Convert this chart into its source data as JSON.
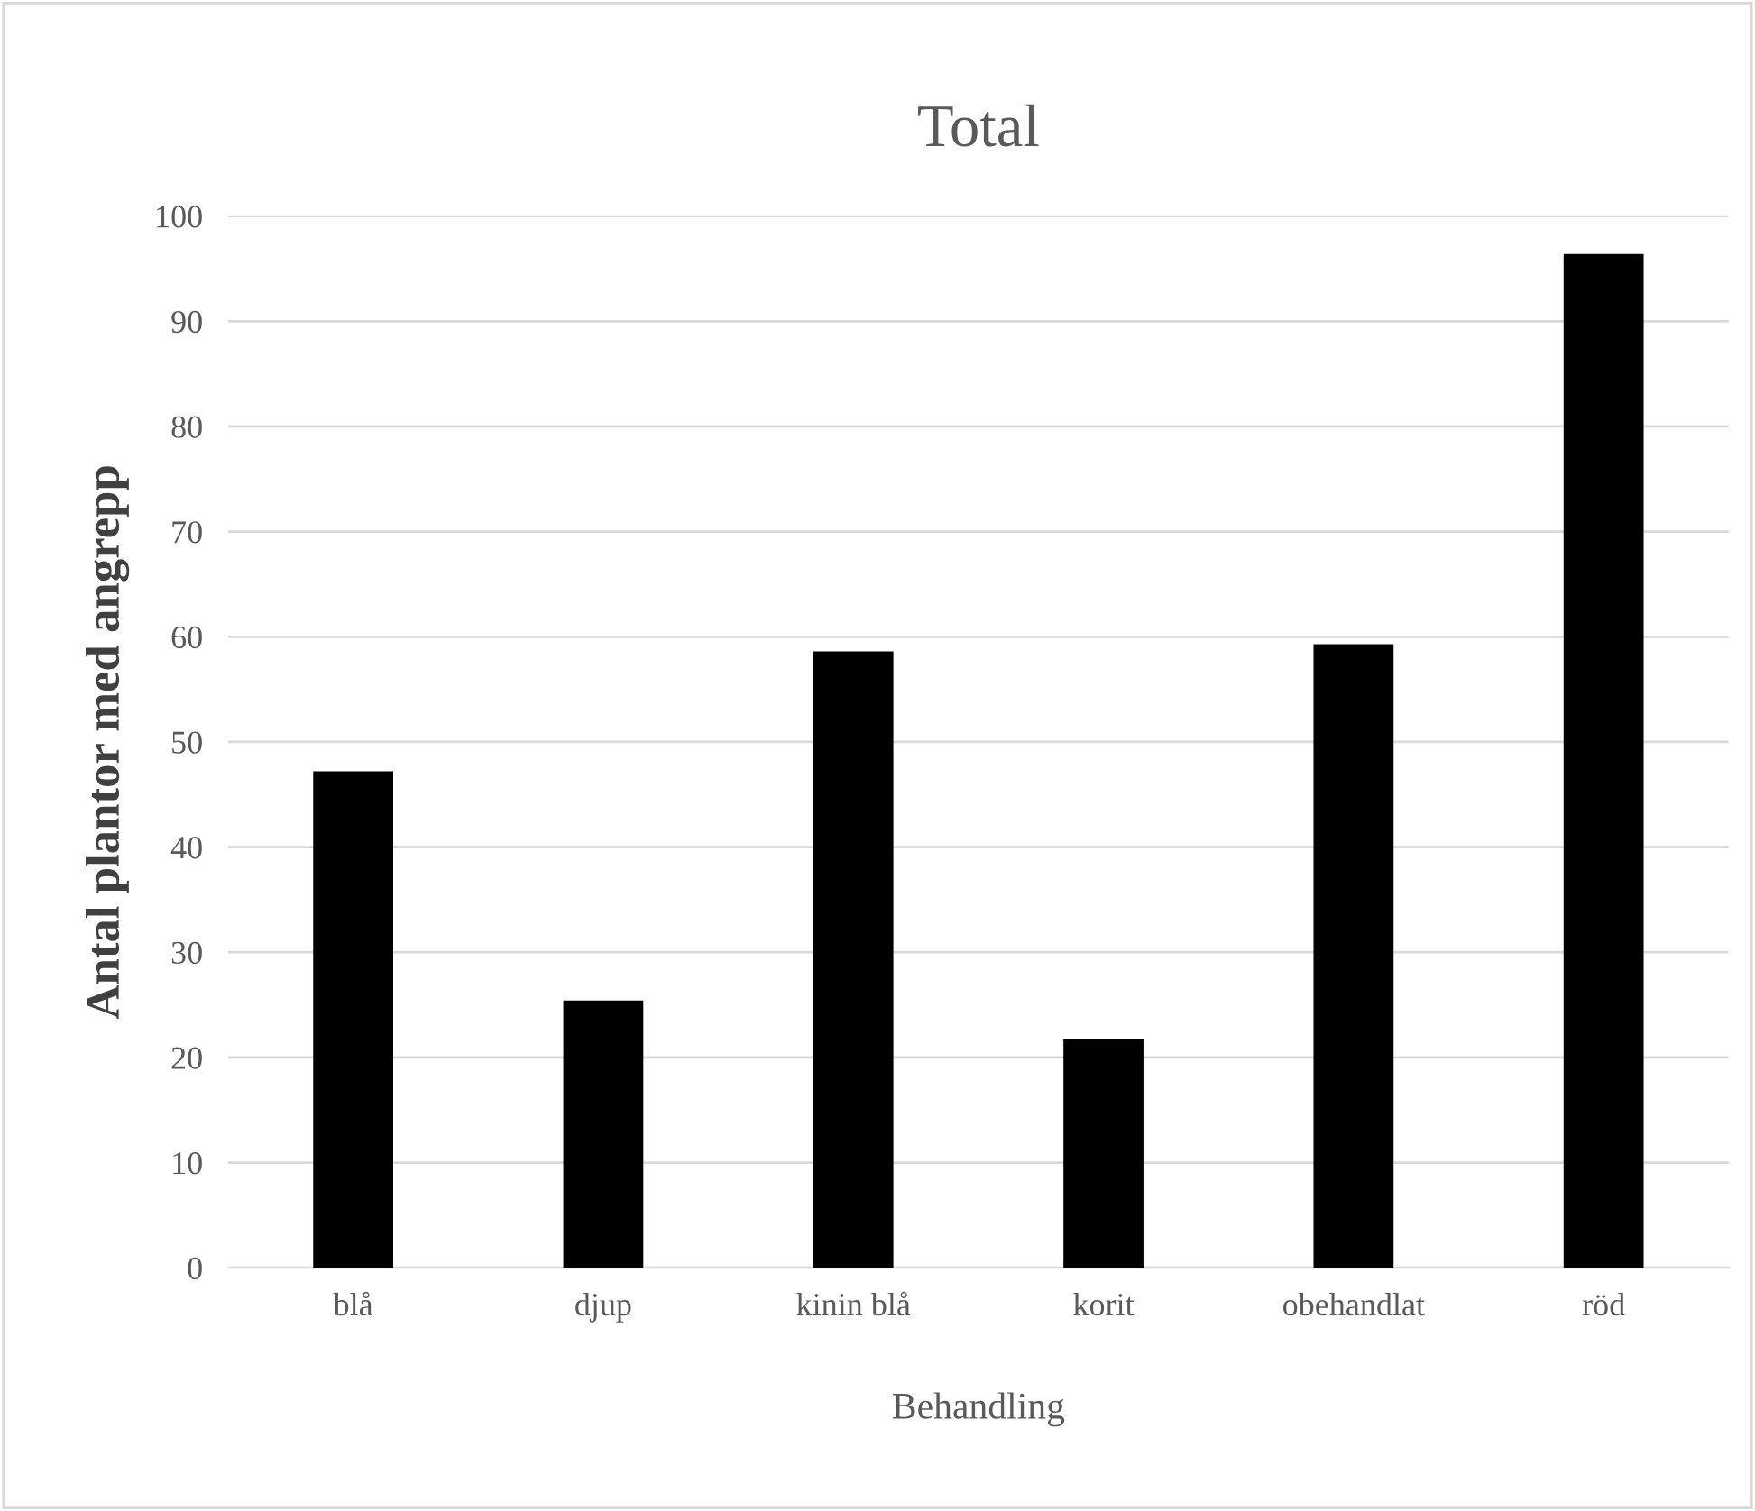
{
  "chart_data": {
    "type": "bar",
    "title": "Total",
    "xlabel": "Behandling",
    "ylabel": "Antal plantor med angrepp",
    "categories": [
      "blå",
      "djup",
      "kinin blå",
      "korit",
      "obehandlat",
      "röd"
    ],
    "values": [
      47.2,
      25.4,
      58.6,
      21.7,
      59.3,
      96.4
    ],
    "color": "#000000",
    "ylim": [
      0,
      100
    ],
    "yticks": [
      0,
      10,
      20,
      30,
      40,
      50,
      60,
      70,
      80,
      90,
      100
    ],
    "grid": "y",
    "legend": false
  }
}
